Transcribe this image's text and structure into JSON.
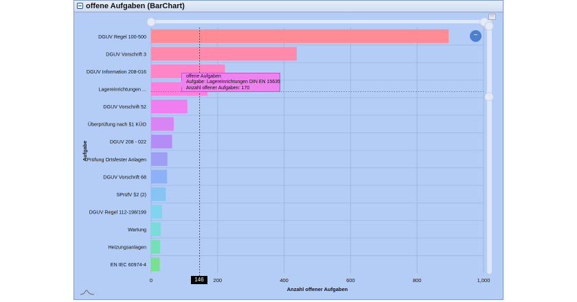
{
  "window": {
    "title": "offene Aufgaben (BarChart)"
  },
  "tooltip": {
    "title": "offene Aufgaben",
    "line1": "Aufgabe: Lagereinrichtungen DIN EN 15635",
    "line2": "Anzahl offener Aufgaben: 170"
  },
  "crosshair": {
    "x_value": 146,
    "x_label": "146"
  },
  "controls": {
    "zoom_label": "−",
    "menu_label": "⋯"
  },
  "colors": {
    "panel": "#b4cdf6",
    "grid": "#9fb6e0"
  },
  "chart_data": {
    "type": "bar",
    "orientation": "horizontal",
    "title": "",
    "xlabel": "Anzahl offener Aufgaben",
    "ylabel": "Aufgabe",
    "xlim": [
      0,
      1000
    ],
    "xticks": [
      0,
      200,
      400,
      600,
      800,
      1000
    ],
    "xtick_labels": [
      "0",
      "200",
      "400",
      "600",
      "800",
      "1,000"
    ],
    "grid": true,
    "categories": [
      "DGUV Regel 100-500",
      "DGUV Vorschrift 3",
      "DGUV Information 208-016",
      "Lagereinrichtungen ...",
      "DGUV Vorschrift 52",
      "Überprüfung nach §1 KÜO",
      "DGUV 208 - 022",
      "Prüfung Ortsfester Anlagen",
      "DGUV Vorschrift 68",
      "SPrüfV §2 (2)",
      "DGUV Regel 112-198/199",
      "Wartung",
      "Heizungsanlagen",
      "EN IEC 60974-4"
    ],
    "values": [
      895,
      438,
      222,
      170,
      109,
      68,
      63,
      49,
      48,
      44,
      33,
      29,
      27,
      26
    ],
    "colors": [
      "#ff8c94",
      "#ff8aae",
      "#ff85c6",
      "#ff7fdf",
      "#ef7ff1",
      "#da84f4",
      "#b38cf5",
      "#9f9ef6",
      "#8eb0f6",
      "#86c4f6",
      "#7fd4f0",
      "#78ddd8",
      "#74e0b6",
      "#76e290"
    ]
  }
}
